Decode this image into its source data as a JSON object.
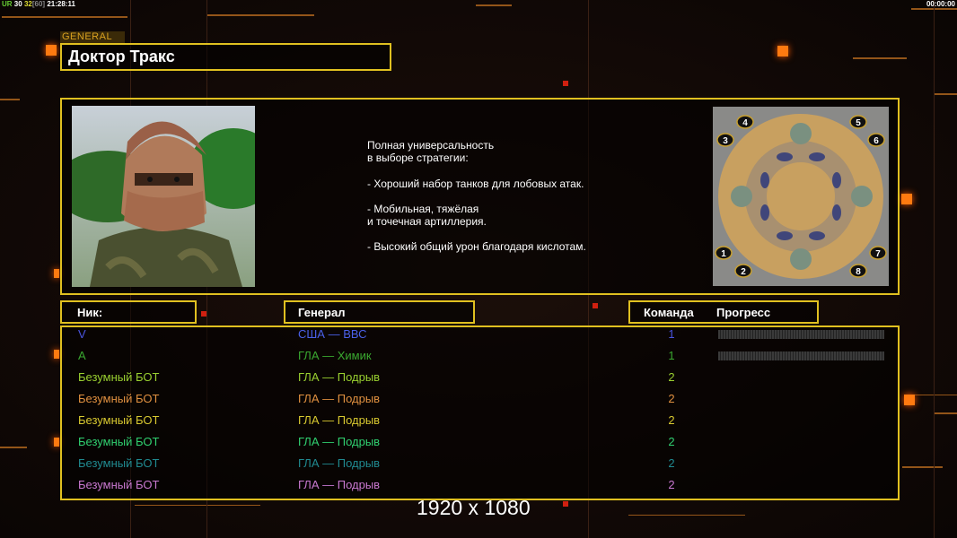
{
  "hud": {
    "left_prefix": "UR",
    "left_a": "30",
    "left_b": "32",
    "left_c": "[60]",
    "left_time": "21:28:11",
    "right_time": "00:00:00"
  },
  "general_label": "GENERAL",
  "general_name": "Доктор Тракс",
  "description": [
    "Полная универсальность",
    "в выборе стратегии:",
    "",
    "- Хороший набор танков для лобовых атак.",
    "",
    "- Мобильная, тяжёлая",
    "и точечная артиллерия.",
    "",
    "- Высокий общий урон благодаря кислотам."
  ],
  "headers": {
    "nick": "Ник:",
    "general": "Генерал",
    "team": "Команда",
    "progress": "Прогресс"
  },
  "players": [
    {
      "nick": "V",
      "general": "США — ВВС",
      "team": "1",
      "color": "#4a55e0",
      "gcolor": "#4a60e8",
      "progress": 0
    },
    {
      "nick": "A",
      "general": "ГЛА — Химик",
      "team": "1",
      "color": "#3aa830",
      "gcolor": "#3aa830",
      "progress": 0
    },
    {
      "nick": "Безумный БОТ",
      "general": "ГЛА — Подрыв",
      "team": "2",
      "color": "#9ad030",
      "gcolor": "#9ad030"
    },
    {
      "nick": "Безумный БОТ",
      "general": "ГЛА — Подрыв",
      "team": "2",
      "color": "#e09040",
      "gcolor": "#e09040"
    },
    {
      "nick": "Безумный БОТ",
      "general": "ГЛА — Подрыв",
      "team": "2",
      "color": "#d8c830",
      "gcolor": "#d8c830"
    },
    {
      "nick": "Безумный БОТ",
      "general": "ГЛА — Подрыв",
      "team": "2",
      "color": "#30d070",
      "gcolor": "#30d070"
    },
    {
      "nick": "Безумный БОТ",
      "general": "ГЛА — Подрыв",
      "team": "2",
      "color": "#208a90",
      "gcolor": "#208a90"
    },
    {
      "nick": "Безумный БОТ",
      "general": "ГЛА — Подрыв",
      "team": "2",
      "color": "#c878d0",
      "gcolor": "#c878d0"
    }
  ],
  "map": {
    "start_positions": [
      "1",
      "2",
      "3",
      "4",
      "5",
      "6",
      "7",
      "8"
    ]
  },
  "resolution": "1920 x 1080",
  "colors": {
    "accent": "#e0c020",
    "orange": "#ff7a10"
  }
}
